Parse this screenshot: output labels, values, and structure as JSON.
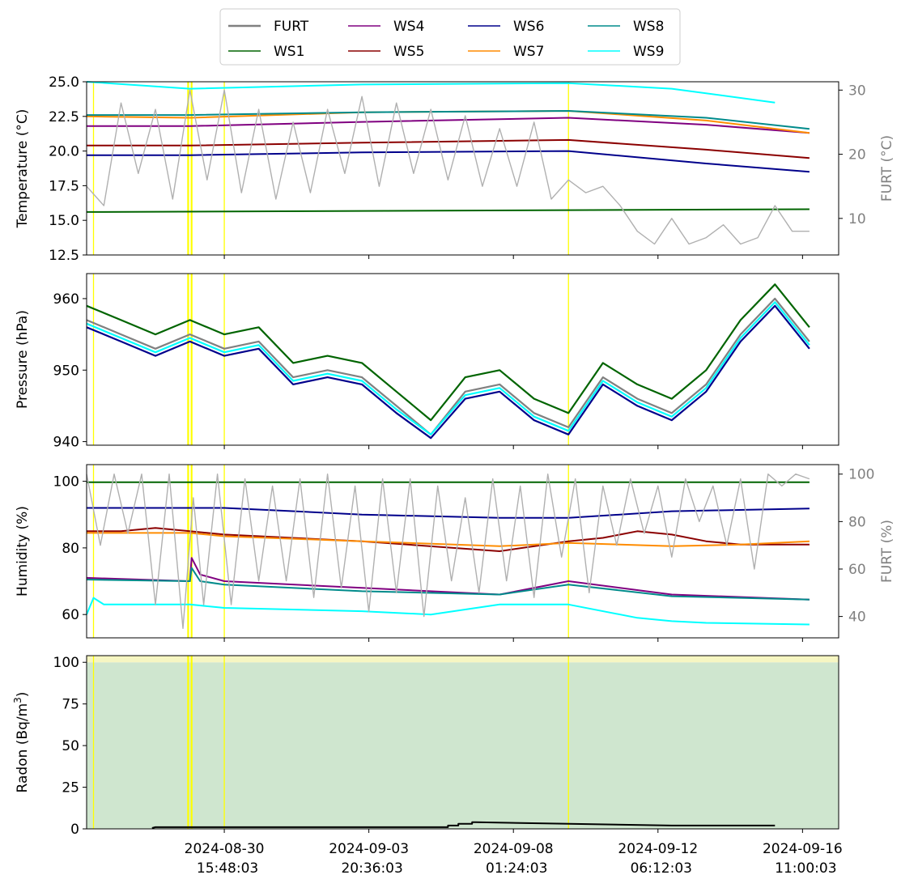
{
  "legend": {
    "items": [
      {
        "label": "FURT",
        "color": "#808080"
      },
      {
        "label": "WS1",
        "color": "#006400"
      },
      {
        "label": "WS4",
        "color": "#800080"
      },
      {
        "label": "WS5",
        "color": "#8b0000"
      },
      {
        "label": "WS6",
        "color": "#00008b"
      },
      {
        "label": "WS7",
        "color": "#ff8c00"
      },
      {
        "label": "WS8",
        "color": "#008b8b"
      },
      {
        "label": "WS9",
        "color": "#00ffff"
      }
    ]
  },
  "x_ticks": [
    {
      "line1": "2024-08-30",
      "line2": "15:48:03",
      "day": 4.0
    },
    {
      "line1": "2024-09-03",
      "line2": "20:36:03",
      "day": 8.2
    },
    {
      "line1": "2024-09-08",
      "line2": "01:24:03",
      "day": 12.4
    },
    {
      "line1": "2024-09-12",
      "line2": "06:12:03",
      "day": 16.6
    },
    {
      "line1": "2024-09-16",
      "line2": "11:00:03",
      "day": 20.8
    }
  ],
  "x_range": [
    0,
    21.85
  ],
  "highlight_days": [
    0.2,
    2.95,
    3.05,
    4.0,
    14.0
  ],
  "chart_data": [
    {
      "type": "line",
      "ylabel": "Temperature (°C)",
      "ylim": [
        12.5,
        25
      ],
      "yticks": [
        12.5,
        15.0,
        17.5,
        20.0,
        22.5,
        25.0
      ],
      "y2label": "FURT (°C)",
      "y2lim": [
        4.3,
        31.3
      ],
      "y2ticks": [
        10,
        20,
        30
      ],
      "series": [
        {
          "name": "WS1",
          "color": "#006400",
          "x": [
            0,
            21
          ],
          "values": [
            15.6,
            15.8
          ]
        },
        {
          "name": "WS4",
          "color": "#800080",
          "x": [
            0,
            3,
            8,
            14,
            18,
            21
          ],
          "values": [
            21.8,
            21.8,
            22.1,
            22.4,
            21.9,
            21.3
          ]
        },
        {
          "name": "WS5",
          "color": "#8b0000",
          "x": [
            0,
            3,
            8,
            14,
            18,
            21
          ],
          "values": [
            20.4,
            20.4,
            20.6,
            20.8,
            20.1,
            19.5
          ]
        },
        {
          "name": "WS6",
          "color": "#00008b",
          "x": [
            0,
            3,
            8,
            14,
            18,
            21
          ],
          "values": [
            19.7,
            19.7,
            19.9,
            20.0,
            19.1,
            18.5
          ]
        },
        {
          "name": "WS7",
          "color": "#ff8c00",
          "x": [
            0,
            3,
            8,
            14,
            18,
            21
          ],
          "values": [
            22.5,
            22.4,
            22.8,
            22.9,
            22.2,
            21.3
          ]
        },
        {
          "name": "WS8",
          "color": "#008b8b",
          "x": [
            0,
            3,
            8,
            14,
            18,
            21
          ],
          "values": [
            22.6,
            22.6,
            22.8,
            22.9,
            22.4,
            21.6
          ]
        },
        {
          "name": "WS9",
          "color": "#00ffff",
          "x": [
            0,
            3,
            8,
            14,
            17,
            20
          ],
          "values": [
            25.0,
            24.5,
            24.8,
            24.9,
            24.5,
            23.5
          ]
        },
        {
          "name": "FURT",
          "color": "#b0b0b0",
          "axis": "right",
          "x": [
            0,
            0.5,
            1.0,
            1.5,
            2.0,
            2.5,
            3.0,
            3.5,
            4.0,
            4.5,
            5.0,
            5.5,
            6.0,
            6.5,
            7.0,
            7.5,
            8.0,
            8.5,
            9.0,
            9.5,
            10.0,
            10.5,
            11.0,
            11.5,
            12.0,
            12.5,
            13.0,
            13.5,
            14.0,
            14.5,
            15.0,
            15.5,
            16.0,
            16.5,
            17.0,
            17.5,
            18.0,
            18.5,
            19.0,
            19.5,
            20.0,
            20.5,
            21.0
          ],
          "values": [
            15,
            12,
            28,
            17,
            27,
            13,
            30,
            16,
            30,
            14,
            27,
            13,
            25,
            14,
            27,
            17,
            29,
            15,
            28,
            17,
            27,
            16,
            26,
            15,
            24,
            15,
            25,
            13,
            16,
            14,
            15,
            12,
            8,
            6,
            10,
            6,
            7,
            9,
            6,
            7,
            12,
            8,
            8
          ]
        }
      ]
    },
    {
      "type": "line",
      "ylabel": "Pressure (hPa)",
      "ylim": [
        939.5,
        963.5
      ],
      "yticks": [
        940,
        950,
        960
      ],
      "series": [
        {
          "name": "WS1",
          "color": "#006400",
          "x": [
            0,
            1,
            2,
            3,
            4,
            5,
            6,
            7,
            8,
            9,
            10,
            11,
            12,
            13,
            14,
            15,
            16,
            17,
            18,
            19,
            20,
            21
          ],
          "values": [
            959,
            957,
            955,
            957,
            955,
            956,
            951,
            952,
            951,
            947,
            943,
            949,
            950,
            946,
            944,
            951,
            948,
            946,
            950,
            957,
            962,
            956
          ]
        },
        {
          "name": "FURT",
          "color": "#808080",
          "x": [
            0,
            1,
            2,
            3,
            4,
            5,
            6,
            7,
            8,
            9,
            10,
            11,
            12,
            13,
            14,
            15,
            16,
            17,
            18,
            19,
            20,
            21
          ],
          "values": [
            957,
            955,
            953,
            955,
            953,
            954,
            949,
            950,
            949,
            945,
            941,
            947,
            948,
            944,
            942,
            949,
            946,
            944,
            948,
            955,
            960,
            954
          ]
        },
        {
          "name": "WS6",
          "color": "#00008b",
          "x": [
            0,
            1,
            2,
            3,
            4,
            5,
            6,
            7,
            8,
            9,
            10,
            11,
            12,
            13,
            14,
            15,
            16,
            17,
            18,
            19,
            20,
            21
          ],
          "values": [
            956,
            954,
            952,
            954,
            952,
            953,
            948,
            949,
            948,
            944,
            940.5,
            946,
            947,
            943,
            941,
            948,
            945,
            943,
            947,
            954,
            959,
            953
          ]
        },
        {
          "name": "WS9",
          "color": "#00ffff",
          "x": [
            0,
            1,
            2,
            3,
            4,
            5,
            6,
            7,
            8,
            9,
            10,
            11,
            12,
            13,
            14,
            15,
            16,
            17,
            18,
            19,
            20,
            21
          ],
          "values": [
            956.5,
            954.5,
            952.5,
            954.5,
            952.5,
            953.5,
            948.5,
            949.5,
            948.5,
            944.5,
            941,
            946.5,
            947.5,
            943.5,
            941.5,
            948.5,
            945.5,
            943.5,
            947.5,
            954.5,
            959.5,
            953.5
          ]
        }
      ]
    },
    {
      "type": "line",
      "ylabel": "Humidity (%)",
      "ylim": [
        53,
        105
      ],
      "yticks": [
        60,
        80,
        100
      ],
      "y2label": "FURT (%)",
      "y2lim": [
        31,
        104
      ],
      "y2ticks": [
        40,
        60,
        80,
        100
      ],
      "series": [
        {
          "name": "WS1",
          "color": "#006400",
          "x": [
            0,
            21
          ],
          "values": [
            99.7,
            99.7
          ]
        },
        {
          "name": "WS6",
          "color": "#00008b",
          "x": [
            0,
            4,
            8,
            12,
            14,
            17,
            21
          ],
          "values": [
            92,
            92,
            90,
            89,
            89,
            91,
            91.8
          ]
        },
        {
          "name": "WS5",
          "color": "#8b0000",
          "x": [
            0,
            1,
            2,
            3,
            4,
            8,
            12,
            14,
            15,
            16,
            17,
            18,
            19,
            21
          ],
          "values": [
            85,
            85,
            86,
            85,
            84,
            82,
            79,
            82,
            83,
            85,
            84,
            82,
            81,
            81
          ]
        },
        {
          "name": "WS7",
          "color": "#ff8c00",
          "x": [
            0,
            3,
            4,
            8,
            12,
            14,
            17,
            19,
            21
          ],
          "values": [
            84.5,
            84.5,
            83.5,
            82,
            80.5,
            81.5,
            80.5,
            81,
            82
          ]
        },
        {
          "name": "WS4",
          "color": "#800080",
          "x": [
            0,
            3,
            3.05,
            3.3,
            4,
            8,
            12,
            14,
            17,
            21
          ],
          "values": [
            71,
            70,
            77,
            72,
            70,
            68,
            66,
            70,
            66,
            64.5
          ]
        },
        {
          "name": "WS8",
          "color": "#008b8b",
          "x": [
            0,
            3,
            3.05,
            3.3,
            4,
            8,
            12,
            14,
            17,
            21
          ],
          "values": [
            70.5,
            70,
            74,
            70,
            69,
            67,
            66,
            69,
            65.5,
            64.5
          ]
        },
        {
          "name": "WS9",
          "color": "#00ffff",
          "x": [
            0,
            0.2,
            0.5,
            3,
            4,
            8,
            10,
            12,
            14,
            16,
            17,
            18,
            21
          ],
          "values": [
            60,
            65,
            63,
            63,
            62,
            61,
            60,
            63,
            63,
            59,
            58,
            57.5,
            57
          ]
        },
        {
          "name": "FURT",
          "color": "#b0b0b0",
          "axis": "right",
          "x": [
            0,
            0.4,
            0.8,
            1.2,
            1.6,
            2.0,
            2.4,
            2.8,
            3.1,
            3.4,
            3.8,
            4.2,
            4.6,
            5.0,
            5.4,
            5.8,
            6.2,
            6.6,
            7.0,
            7.4,
            7.8,
            8.2,
            8.6,
            9.0,
            9.4,
            9.8,
            10.2,
            10.6,
            11.0,
            11.4,
            11.8,
            12.2,
            12.6,
            13.0,
            13.4,
            13.8,
            14.2,
            14.6,
            15.0,
            15.4,
            15.8,
            16.2,
            16.6,
            17.0,
            17.4,
            17.8,
            18.2,
            18.6,
            19.0,
            19.4,
            19.8,
            20.2,
            20.6,
            21.0
          ],
          "values": [
            100,
            70,
            100,
            75,
            100,
            45,
            100,
            35,
            90,
            45,
            100,
            45,
            98,
            55,
            95,
            55,
            98,
            48,
            100,
            52,
            95,
            42,
            98,
            50,
            98,
            40,
            95,
            55,
            90,
            50,
            98,
            55,
            95,
            48,
            100,
            65,
            98,
            50,
            95,
            70,
            98,
            75,
            95,
            65,
            98,
            80,
            95,
            70,
            98,
            60,
            100,
            95,
            100,
            98
          ]
        }
      ]
    },
    {
      "type": "area",
      "ylabel": "Radon (Bq/m",
      "ylabel_sup": "3",
      "ylabel_close": ")",
      "ylim": [
        0,
        104
      ],
      "yticks": [
        0,
        25,
        50,
        75,
        100
      ],
      "bands": [
        {
          "from": 0,
          "to": 100,
          "color": "#cfe6cf"
        },
        {
          "from": 100,
          "to": 104,
          "color": "#f6f6c2"
        }
      ],
      "series": [
        {
          "name": "Radon",
          "color": "#000000",
          "x": [
            1.9,
            2.0,
            3.7,
            4.0,
            4.8,
            5.7,
            6.3,
            8.2,
            9.2,
            10.5,
            10.5,
            10.8,
            10.8,
            11.2,
            11.2,
            11.3,
            17.0,
            20.0
          ],
          "values": [
            0.5,
            1,
            1,
            1,
            1,
            1,
            1,
            1,
            1,
            1,
            2,
            2,
            3,
            3,
            4,
            4,
            2,
            2
          ]
        }
      ]
    }
  ]
}
